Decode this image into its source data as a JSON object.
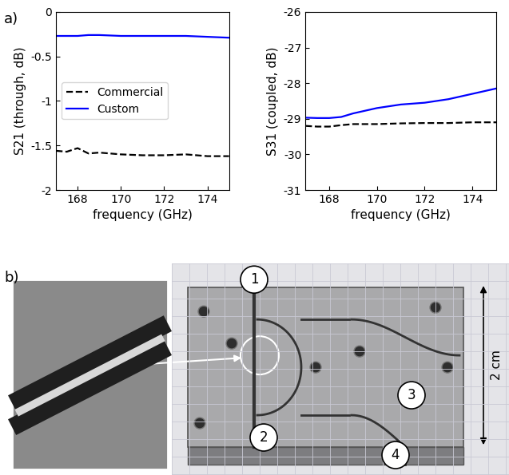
{
  "chart_data": [
    {
      "type": "line",
      "y_label": "S21 (through, dB)",
      "x_label": "frequency (GHz)",
      "x": [
        167,
        167.5,
        168,
        168.5,
        169,
        170,
        171,
        172,
        173,
        174,
        175
      ],
      "xlim": [
        167,
        175
      ],
      "xticks": [
        168,
        170,
        172,
        174
      ],
      "ylim": [
        -2,
        0
      ],
      "yticks": [
        -2,
        -1.5,
        -1,
        -0.5,
        0
      ],
      "legend": "center left",
      "series": [
        {
          "name": "Commercial",
          "color": "#000000",
          "line_style": "dashed",
          "values": [
            -1.56,
            -1.57,
            -1.53,
            -1.59,
            -1.58,
            -1.6,
            -1.61,
            -1.61,
            -1.6,
            -1.62,
            -1.62
          ]
        },
        {
          "name": "Custom",
          "color": "#0000ff",
          "line_style": "solid",
          "values": [
            -0.27,
            -0.27,
            -0.27,
            -0.26,
            -0.26,
            -0.27,
            -0.27,
            -0.27,
            -0.27,
            -0.28,
            -0.29
          ]
        }
      ]
    },
    {
      "type": "line",
      "y_label": "S31 (coupled, dB)",
      "x_label": "frequency (GHz)",
      "x": [
        167,
        167.5,
        168,
        168.5,
        169,
        170,
        171,
        172,
        173,
        174,
        175
      ],
      "xlim": [
        167,
        175
      ],
      "xticks": [
        168,
        170,
        172,
        174
      ],
      "ylim": [
        -31,
        -26
      ],
      "yticks": [
        -31,
        -30,
        -29,
        -28,
        -27,
        -26
      ],
      "series": [
        {
          "name": "Commercial",
          "color": "#000000",
          "line_style": "dashed",
          "values": [
            -29.2,
            -29.22,
            -29.22,
            -29.18,
            -29.15,
            -29.15,
            -29.13,
            -29.12,
            -29.12,
            -29.1,
            -29.1
          ]
        },
        {
          "name": "Custom",
          "color": "#0000ff",
          "line_style": "solid",
          "values": [
            -28.97,
            -28.98,
            -28.98,
            -28.95,
            -28.85,
            -28.7,
            -28.6,
            -28.55,
            -28.45,
            -28.3,
            -28.15
          ]
        }
      ]
    }
  ],
  "panel_labels": [
    "a)",
    "b)"
  ],
  "photo": {
    "ports": [
      "1",
      "2",
      "3",
      "4"
    ],
    "scale_label": "2 cm"
  }
}
